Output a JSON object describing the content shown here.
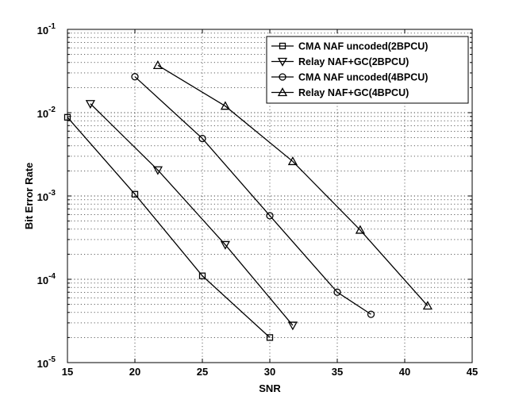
{
  "chart_data": {
    "type": "line",
    "title": "",
    "xlabel": "SNR",
    "ylabel": "Bit Error Rate",
    "xlim": [
      15,
      45
    ],
    "ylim": [
      1e-05,
      0.1
    ],
    "yscale": "log",
    "grid": true,
    "legend_position": "top-right",
    "x_ticks": [
      "15",
      "20",
      "25",
      "30",
      "35",
      "40",
      "45"
    ],
    "y_ticks": [
      {
        "base": "10",
        "exp": "-5"
      },
      {
        "base": "10",
        "exp": "-4"
      },
      {
        "base": "10",
        "exp": "-3"
      },
      {
        "base": "10",
        "exp": "-2"
      },
      {
        "base": "10",
        "exp": "-1"
      }
    ],
    "series": [
      {
        "name": "CMA NAF uncoded(2BPCU)",
        "marker": "square",
        "x": [
          15,
          20,
          25,
          30
        ],
        "y": [
          0.0088,
          0.00105,
          0.00011,
          2e-05
        ]
      },
      {
        "name": "Relay NAF+GC(2BPCU)",
        "marker": "triangle-down",
        "x": [
          16.7,
          21.7,
          26.7,
          31.7
        ],
        "y": [
          0.0128,
          0.00205,
          0.00026,
          2.8e-05
        ]
      },
      {
        "name": "CMA NAF uncoded(4BPCU)",
        "marker": "circle",
        "x": [
          20,
          25,
          30,
          35,
          37.5
        ],
        "y": [
          0.027,
          0.0049,
          0.00058,
          7e-05,
          3.8e-05
        ]
      },
      {
        "name": "Relay NAF+GC(4BPCU)",
        "marker": "triangle-up",
        "x": [
          21.7,
          26.7,
          31.7,
          36.7,
          41.7
        ],
        "y": [
          0.037,
          0.012,
          0.0026,
          0.00039,
          4.8e-05
        ]
      }
    ]
  }
}
